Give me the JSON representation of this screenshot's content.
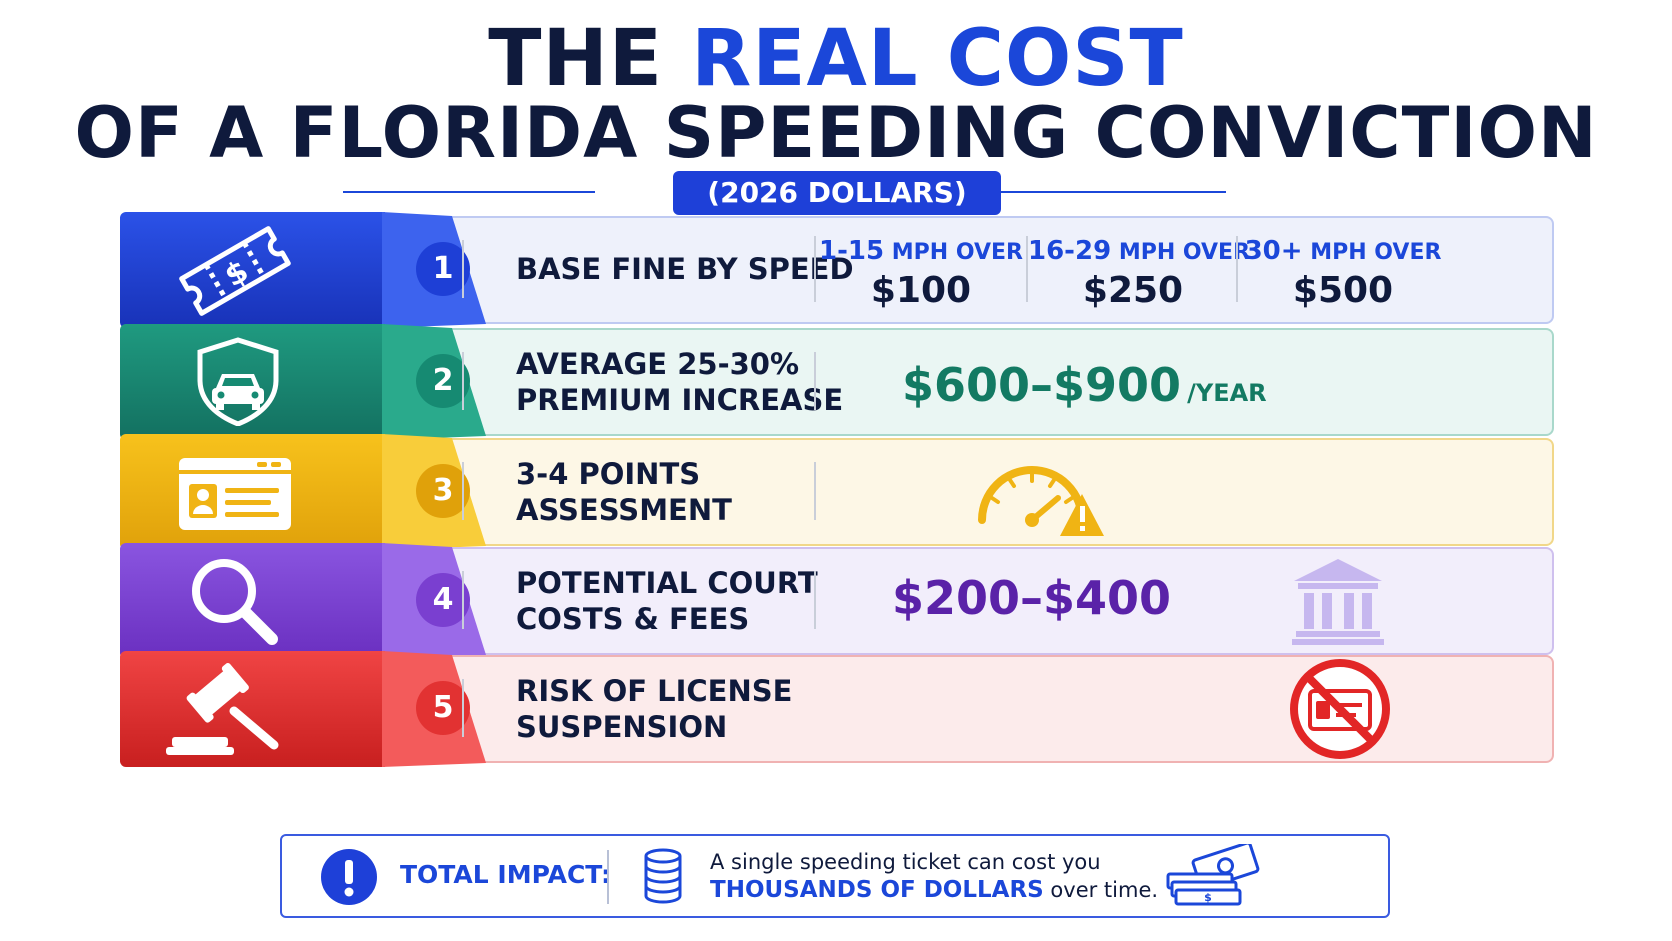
{
  "header": {
    "title_line1_pre": "THE ",
    "title_line1_highlight": "REAL COST",
    "title_line2": "OF A FLORIDA SPEEDING CONVICTION",
    "subtitle": "(2026 DOLLARS)"
  },
  "rows": [
    {
      "number": "1",
      "label_line1": "BASE FINE BY SPEED",
      "icon": "ticket-dollar-icon",
      "color": "#1e3fd6",
      "tiers": [
        {
          "range": "1-15",
          "unit": "MPH OVER",
          "amount": "$100"
        },
        {
          "range": "16-29",
          "unit": "MPH OVER",
          "amount": "$250"
        },
        {
          "range": "30+",
          "unit": "MPH OVER",
          "amount": "$500"
        }
      ]
    },
    {
      "number": "2",
      "label_line1": "AVERAGE 25-30%",
      "label_line2": "PREMIUM INCREASE",
      "icon": "car-shield-icon",
      "color": "#168a72",
      "value": "$600–$900",
      "value_suffix": "/YEAR"
    },
    {
      "number": "3",
      "label_line1": "3-4 POINTS",
      "label_line2": "ASSESSMENT",
      "icon": "id-card-icon",
      "color": "#f0b414",
      "side_icon": "speedometer-warning-icon"
    },
    {
      "number": "4",
      "label_line1": "POTENTIAL COURT",
      "label_line2": "COSTS & FEES",
      "icon": "magnifier-icon",
      "color": "#7a3fd0",
      "value": "$200–$400",
      "side_icon": "courthouse-icon"
    },
    {
      "number": "5",
      "label_line1": "RISK OF LICENSE",
      "label_line2": "SUSPENSION",
      "icon": "gavel-icon",
      "color": "#e23232",
      "side_icon": "no-license-icon"
    }
  ],
  "footer": {
    "label": "TOTAL IMPACT:",
    "text_line1": "A single speeding ticket can cost you",
    "text_highlight": "THOUSANDS OF DOLLARS",
    "text_line2_suffix": " over time.",
    "icons": [
      "alert-icon",
      "coins-icon",
      "cash-stack-icon"
    ]
  }
}
